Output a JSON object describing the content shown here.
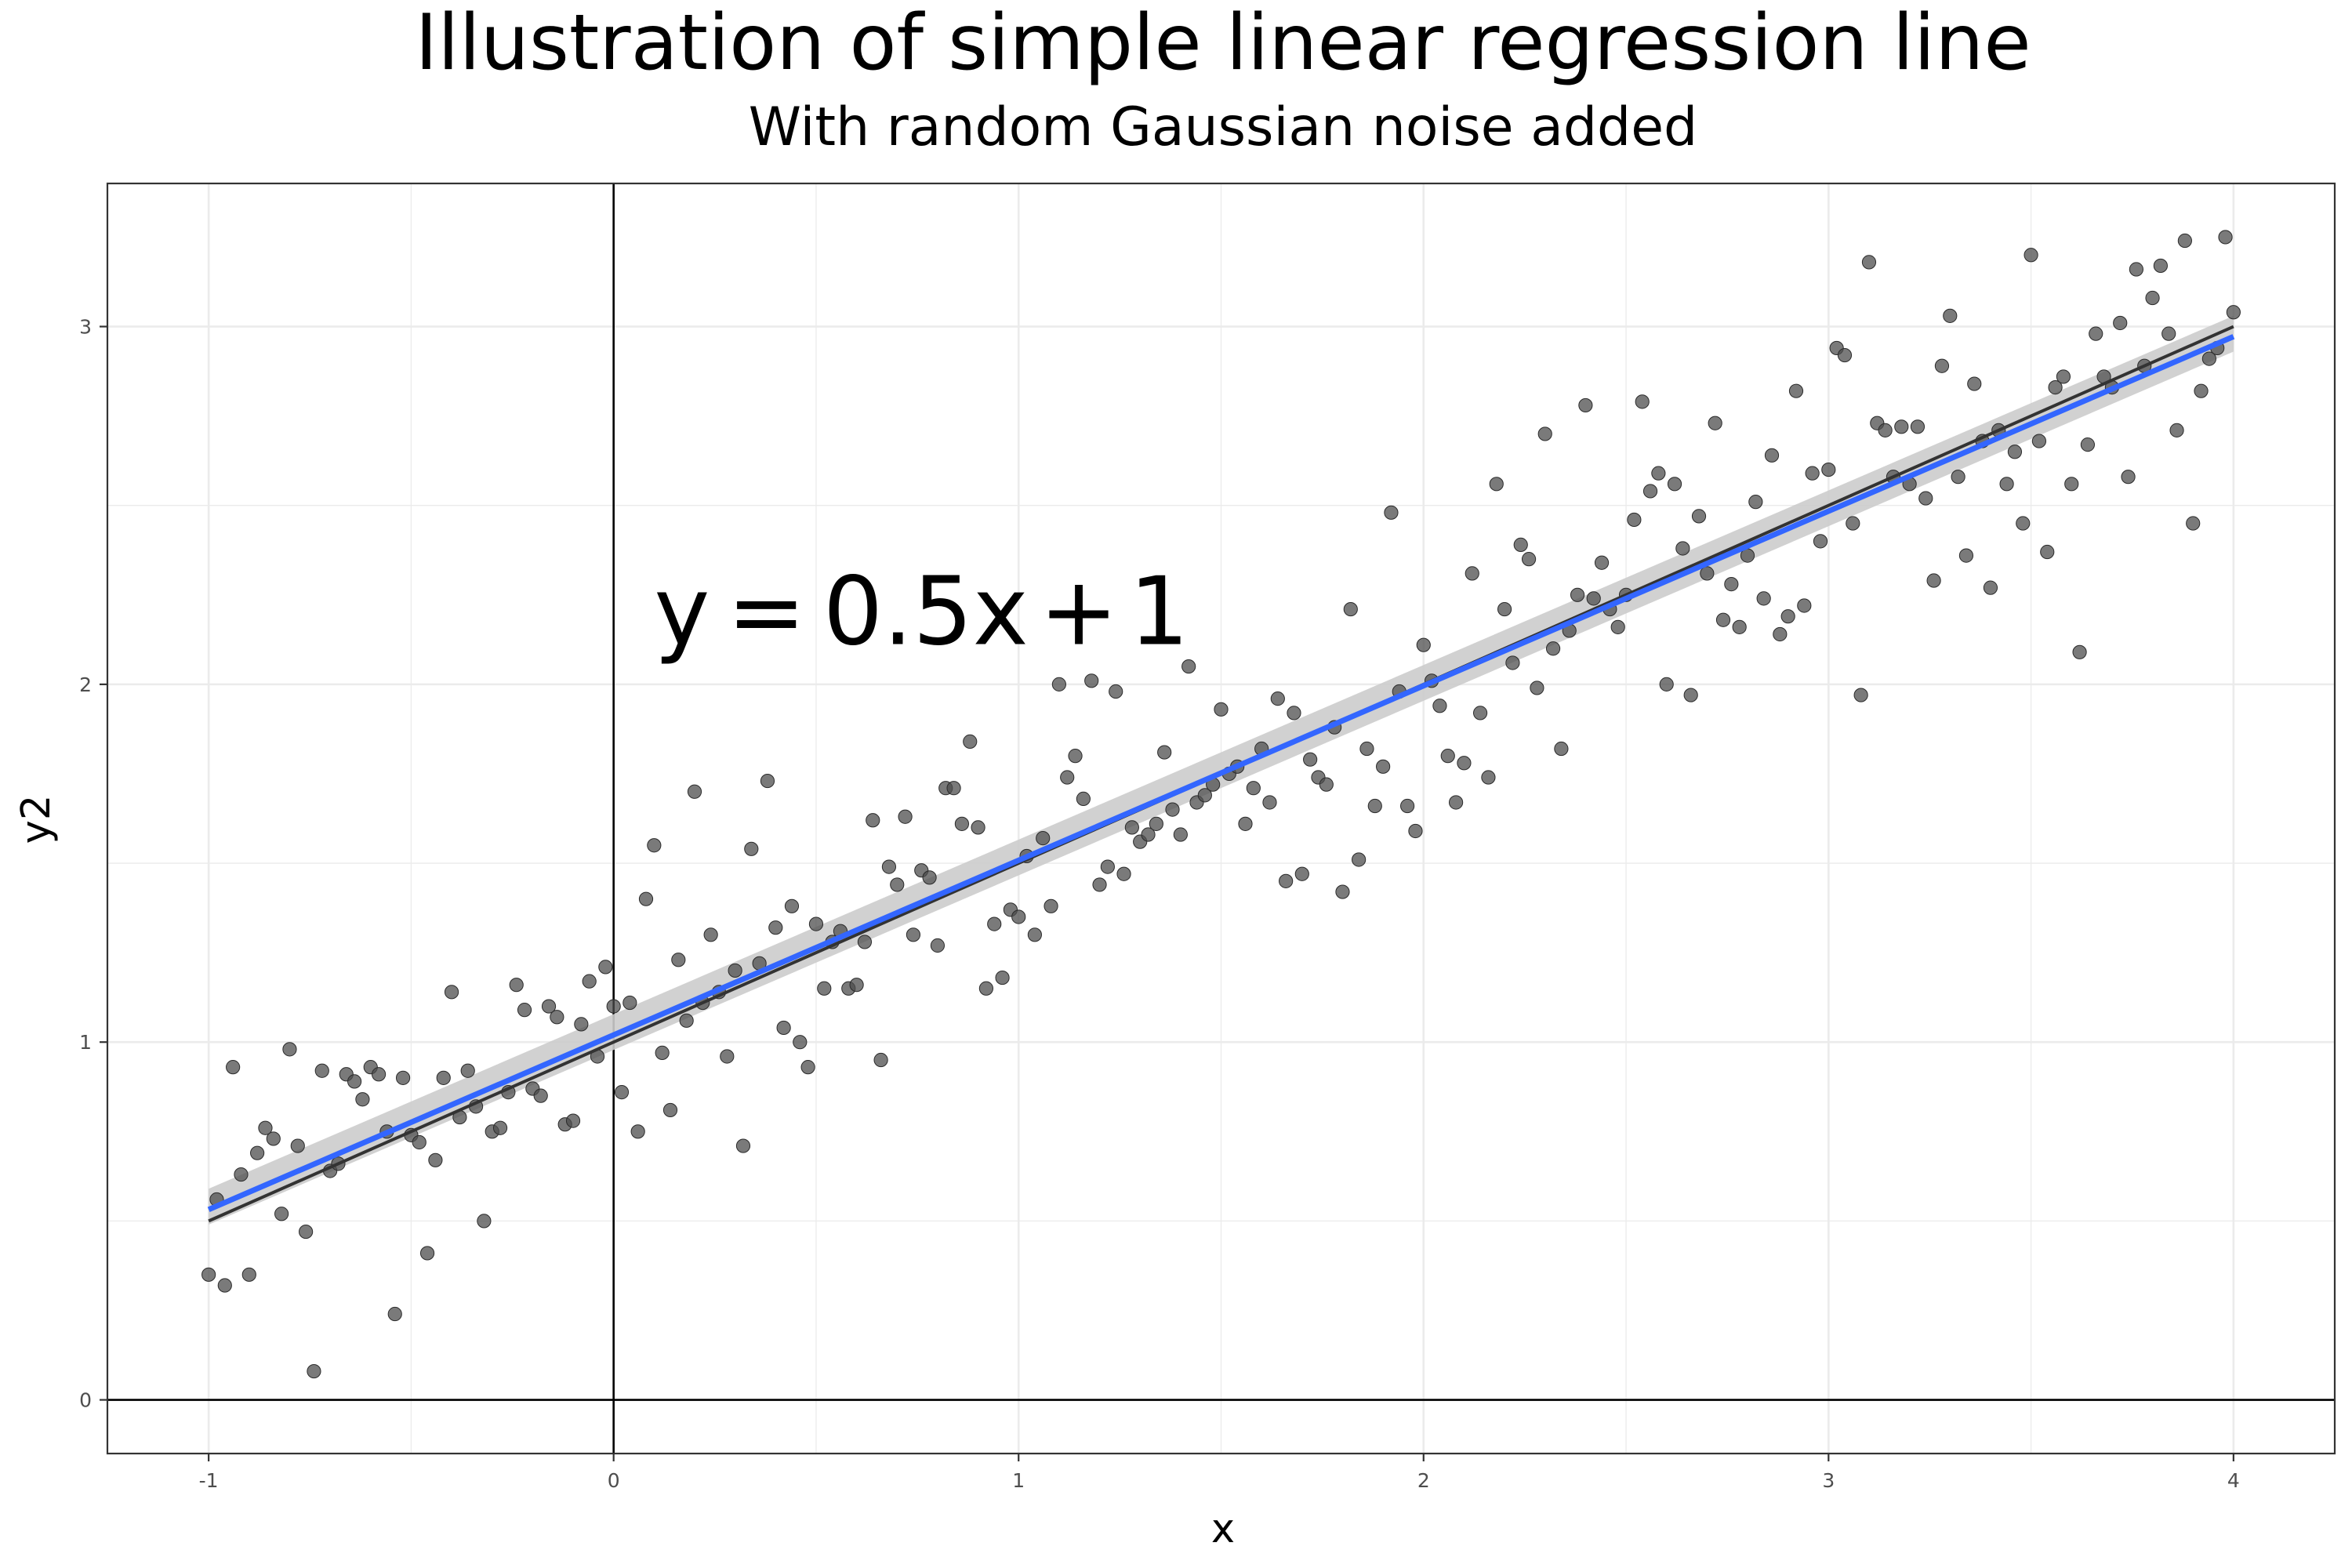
{
  "chart_data": {
    "type": "scatter",
    "title": "Illustration of simple linear regression line",
    "subtitle": "With random Gaussian noise added",
    "xlabel": "x",
    "ylabel": "y2",
    "xlim": [
      -1.25,
      4.25
    ],
    "ylim": [
      -0.15,
      3.4
    ],
    "x_ticks": [
      -1,
      0,
      1,
      2,
      3,
      4
    ],
    "y_ticks": [
      0,
      1,
      2,
      3
    ],
    "x_tick_labels": [
      "-1",
      "0",
      "1",
      "2",
      "3",
      "4"
    ],
    "y_tick_labels": [
      "0",
      "1",
      "2",
      "3"
    ],
    "grid": true,
    "reference_lines": {
      "x": 0,
      "y": 0
    },
    "annotation": {
      "parts": [
        "y",
        "=",
        "0.5x",
        "+",
        "1"
      ],
      "x": 0.1,
      "y": 2.2
    },
    "true_line": {
      "slope": 0.5,
      "intercept": 1,
      "x_range": [
        -1,
        4
      ],
      "color": "#333333"
    },
    "fit_line": {
      "slope": 0.488,
      "intercept": 1.02,
      "x_range": [
        -1,
        4
      ],
      "color": "#3366ff",
      "ci_band_lower": [
        0.49,
        2.93
      ],
      "ci_band_upper": [
        0.59,
        3.03
      ],
      "ci_color": "#cccccc"
    },
    "point_color": "#4d4d4d",
    "points": [
      [
        -1.0,
        0.35
      ],
      [
        -0.98,
        0.56
      ],
      [
        -0.96,
        0.32
      ],
      [
        -0.94,
        0.93
      ],
      [
        -0.92,
        0.63
      ],
      [
        -0.9,
        0.35
      ],
      [
        -0.88,
        0.69
      ],
      [
        -0.86,
        0.76
      ],
      [
        -0.84,
        0.73
      ],
      [
        -0.82,
        0.52
      ],
      [
        -0.8,
        0.98
      ],
      [
        -0.78,
        0.71
      ],
      [
        -0.76,
        0.47
      ],
      [
        -0.74,
        0.08
      ],
      [
        -0.72,
        0.92
      ],
      [
        -0.7,
        0.64
      ],
      [
        -0.68,
        0.66
      ],
      [
        -0.66,
        0.91
      ],
      [
        -0.64,
        0.89
      ],
      [
        -0.62,
        0.84
      ],
      [
        -0.6,
        0.93
      ],
      [
        -0.58,
        0.91
      ],
      [
        -0.56,
        0.75
      ],
      [
        -0.54,
        0.24
      ],
      [
        -0.52,
        0.9
      ],
      [
        -0.5,
        0.74
      ],
      [
        -0.48,
        0.72
      ],
      [
        -0.46,
        0.41
      ],
      [
        -0.44,
        0.67
      ],
      [
        -0.42,
        0.9
      ],
      [
        -0.4,
        1.14
      ],
      [
        -0.38,
        0.79
      ],
      [
        -0.36,
        0.92
      ],
      [
        -0.34,
        0.82
      ],
      [
        -0.32,
        0.5
      ],
      [
        -0.3,
        0.75
      ],
      [
        -0.28,
        0.76
      ],
      [
        -0.26,
        0.86
      ],
      [
        -0.24,
        1.16
      ],
      [
        -0.22,
        1.09
      ],
      [
        -0.2,
        0.87
      ],
      [
        -0.18,
        0.85
      ],
      [
        -0.16,
        1.1
      ],
      [
        -0.14,
        1.07
      ],
      [
        -0.12,
        0.77
      ],
      [
        -0.1,
        0.78
      ],
      [
        -0.08,
        1.05
      ],
      [
        -0.06,
        1.17
      ],
      [
        -0.04,
        0.96
      ],
      [
        -0.02,
        1.21
      ],
      [
        0.0,
        1.1
      ],
      [
        0.02,
        0.86
      ],
      [
        0.04,
        1.11
      ],
      [
        0.06,
        0.75
      ],
      [
        0.08,
        1.4
      ],
      [
        0.1,
        1.55
      ],
      [
        0.12,
        0.97
      ],
      [
        0.14,
        0.81
      ],
      [
        0.16,
        1.23
      ],
      [
        0.18,
        1.06
      ],
      [
        0.2,
        1.7
      ],
      [
        0.22,
        1.11
      ],
      [
        0.24,
        1.3
      ],
      [
        0.26,
        1.14
      ],
      [
        0.28,
        0.96
      ],
      [
        0.3,
        1.2
      ],
      [
        0.32,
        0.71
      ],
      [
        0.34,
        1.54
      ],
      [
        0.36,
        1.22
      ],
      [
        0.38,
        1.73
      ],
      [
        0.4,
        1.32
      ],
      [
        0.42,
        1.04
      ],
      [
        0.44,
        1.38
      ],
      [
        0.46,
        1.0
      ],
      [
        0.48,
        0.93
      ],
      [
        0.5,
        1.33
      ],
      [
        0.52,
        1.15
      ],
      [
        0.54,
        1.28
      ],
      [
        0.56,
        1.31
      ],
      [
        0.58,
        1.15
      ],
      [
        0.6,
        1.16
      ],
      [
        0.62,
        1.28
      ],
      [
        0.64,
        1.62
      ],
      [
        0.66,
        0.95
      ],
      [
        0.68,
        1.49
      ],
      [
        0.7,
        1.44
      ],
      [
        0.72,
        1.63
      ],
      [
        0.74,
        1.3
      ],
      [
        0.76,
        1.48
      ],
      [
        0.78,
        1.46
      ],
      [
        0.8,
        1.27
      ],
      [
        0.82,
        1.71
      ],
      [
        0.84,
        1.71
      ],
      [
        0.86,
        1.61
      ],
      [
        0.88,
        1.84
      ],
      [
        0.9,
        1.6
      ],
      [
        0.92,
        1.15
      ],
      [
        0.94,
        1.33
      ],
      [
        0.96,
        1.18
      ],
      [
        0.98,
        1.37
      ],
      [
        1.0,
        1.35
      ],
      [
        1.02,
        1.52
      ],
      [
        1.04,
        1.3
      ],
      [
        1.06,
        1.57
      ],
      [
        1.08,
        1.38
      ],
      [
        1.1,
        2.0
      ],
      [
        1.12,
        1.74
      ],
      [
        1.14,
        1.8
      ],
      [
        1.16,
        1.68
      ],
      [
        1.18,
        2.01
      ],
      [
        1.2,
        1.44
      ],
      [
        1.22,
        1.49
      ],
      [
        1.24,
        1.98
      ],
      [
        1.26,
        1.47
      ],
      [
        1.28,
        1.6
      ],
      [
        1.3,
        1.56
      ],
      [
        1.32,
        1.58
      ],
      [
        1.34,
        1.61
      ],
      [
        1.36,
        1.81
      ],
      [
        1.38,
        1.65
      ],
      [
        1.4,
        1.58
      ],
      [
        1.42,
        2.05
      ],
      [
        1.44,
        1.67
      ],
      [
        1.46,
        1.69
      ],
      [
        1.48,
        1.72
      ],
      [
        1.5,
        1.93
      ],
      [
        1.52,
        1.75
      ],
      [
        1.54,
        1.77
      ],
      [
        1.56,
        1.61
      ],
      [
        1.58,
        1.71
      ],
      [
        1.6,
        1.82
      ],
      [
        1.62,
        1.67
      ],
      [
        1.64,
        1.96
      ],
      [
        1.66,
        1.45
      ],
      [
        1.68,
        1.92
      ],
      [
        1.7,
        1.47
      ],
      [
        1.72,
        1.79
      ],
      [
        1.74,
        1.74
      ],
      [
        1.76,
        1.72
      ],
      [
        1.78,
        1.88
      ],
      [
        1.8,
        1.42
      ],
      [
        1.82,
        2.21
      ],
      [
        1.84,
        1.51
      ],
      [
        1.86,
        1.82
      ],
      [
        1.88,
        1.66
      ],
      [
        1.9,
        1.77
      ],
      [
        1.92,
        2.48
      ],
      [
        1.94,
        1.98
      ],
      [
        1.96,
        1.66
      ],
      [
        1.98,
        1.59
      ],
      [
        2.0,
        2.11
      ],
      [
        2.02,
        2.01
      ],
      [
        2.04,
        1.94
      ],
      [
        2.06,
        1.8
      ],
      [
        2.08,
        1.67
      ],
      [
        2.1,
        1.78
      ],
      [
        2.12,
        2.31
      ],
      [
        2.14,
        1.92
      ],
      [
        2.16,
        1.74
      ],
      [
        2.18,
        2.56
      ],
      [
        2.2,
        2.21
      ],
      [
        2.22,
        2.06
      ],
      [
        2.24,
        2.39
      ],
      [
        2.26,
        2.35
      ],
      [
        2.28,
        1.99
      ],
      [
        2.3,
        2.7
      ],
      [
        2.32,
        2.1
      ],
      [
        2.34,
        1.82
      ],
      [
        2.36,
        2.15
      ],
      [
        2.38,
        2.25
      ],
      [
        2.4,
        2.78
      ],
      [
        2.42,
        2.24
      ],
      [
        2.44,
        2.34
      ],
      [
        2.46,
        2.21
      ],
      [
        2.48,
        2.16
      ],
      [
        2.5,
        2.25
      ],
      [
        2.52,
        2.46
      ],
      [
        2.54,
        2.79
      ],
      [
        2.56,
        2.54
      ],
      [
        2.58,
        2.59
      ],
      [
        2.6,
        2.0
      ],
      [
        2.62,
        2.56
      ],
      [
        2.64,
        2.38
      ],
      [
        2.66,
        1.97
      ],
      [
        2.68,
        2.47
      ],
      [
        2.7,
        2.31
      ],
      [
        2.72,
        2.73
      ],
      [
        2.74,
        2.18
      ],
      [
        2.76,
        2.28
      ],
      [
        2.78,
        2.16
      ],
      [
        2.8,
        2.36
      ],
      [
        2.82,
        2.51
      ],
      [
        2.84,
        2.24
      ],
      [
        2.86,
        2.64
      ],
      [
        2.88,
        2.14
      ],
      [
        2.9,
        2.19
      ],
      [
        2.92,
        2.82
      ],
      [
        2.94,
        2.22
      ],
      [
        2.96,
        2.59
      ],
      [
        2.98,
        2.4
      ],
      [
        3.0,
        2.6
      ],
      [
        3.02,
        2.94
      ],
      [
        3.04,
        2.92
      ],
      [
        3.06,
        2.45
      ],
      [
        3.08,
        1.97
      ],
      [
        3.1,
        3.18
      ],
      [
        3.12,
        2.73
      ],
      [
        3.14,
        2.71
      ],
      [
        3.16,
        2.58
      ],
      [
        3.18,
        2.72
      ],
      [
        3.2,
        2.56
      ],
      [
        3.22,
        2.72
      ],
      [
        3.24,
        2.52
      ],
      [
        3.26,
        2.29
      ],
      [
        3.28,
        2.89
      ],
      [
        3.3,
        3.03
      ],
      [
        3.32,
        2.58
      ],
      [
        3.34,
        2.36
      ],
      [
        3.36,
        2.84
      ],
      [
        3.38,
        2.68
      ],
      [
        3.4,
        2.27
      ],
      [
        3.42,
        2.71
      ],
      [
        3.44,
        2.56
      ],
      [
        3.46,
        2.65
      ],
      [
        3.48,
        2.45
      ],
      [
        3.5,
        3.2
      ],
      [
        3.52,
        2.68
      ],
      [
        3.54,
        2.37
      ],
      [
        3.56,
        2.83
      ],
      [
        3.58,
        2.86
      ],
      [
        3.6,
        2.56
      ],
      [
        3.62,
        2.09
      ],
      [
        3.64,
        2.67
      ],
      [
        3.66,
        2.98
      ],
      [
        3.68,
        2.86
      ],
      [
        3.7,
        2.83
      ],
      [
        3.72,
        3.01
      ],
      [
        3.74,
        2.58
      ],
      [
        3.76,
        3.16
      ],
      [
        3.78,
        2.89
      ],
      [
        3.8,
        3.08
      ],
      [
        3.82,
        3.17
      ],
      [
        3.84,
        2.98
      ],
      [
        3.86,
        2.71
      ],
      [
        3.88,
        3.24
      ],
      [
        3.9,
        2.45
      ],
      [
        3.92,
        2.82
      ],
      [
        3.94,
        2.91
      ],
      [
        3.96,
        2.94
      ],
      [
        3.98,
        3.25
      ],
      [
        4.0,
        3.04
      ]
    ]
  }
}
